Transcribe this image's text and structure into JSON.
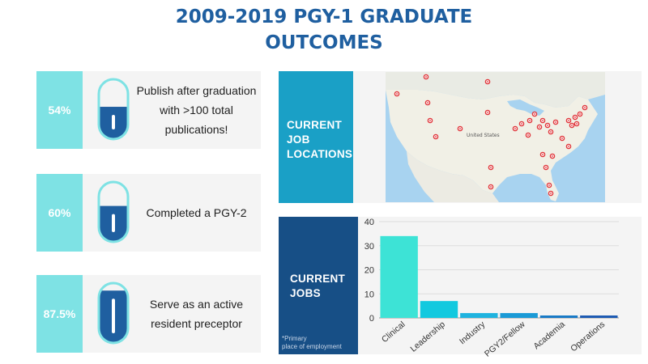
{
  "title": {
    "line1": "2009-2019 PGY-1 GRADUATE",
    "line2": "OUTCOMES"
  },
  "colors": {
    "title": "#1f5fa0",
    "percent_box": "#7ee2e4",
    "pill_fill": "#1f5fa0",
    "pill_outline": "#7ee2e4",
    "locations_header": "#1aa0c6",
    "jobs_header": "#174f86"
  },
  "stats": [
    {
      "percent": "54%",
      "lines": [
        "Publish after graduation",
        "with >100 total",
        "publications!"
      ],
      "fill_fraction": 0.54
    },
    {
      "percent": "60%",
      "lines": [
        "Completed a PGY-2"
      ],
      "fill_fraction": 0.6
    },
    {
      "percent": "87.5%",
      "lines": [
        "Serve as an active",
        "resident preceptor"
      ],
      "fill_fraction": 0.875
    }
  ],
  "locations": {
    "header": [
      "CURRENT",
      "JOB",
      "LOCATIONS"
    ],
    "map_label": "United States",
    "marker_icon": "map-pin-icon"
  },
  "jobs": {
    "header": [
      "CURRENT",
      "JOBS"
    ],
    "footnote": [
      "*Primary",
      "place of employment"
    ]
  },
  "chart_data": {
    "type": "bar",
    "categories": [
      "Clinical",
      "Leadership",
      "Industry",
      "PGY2/Fellow",
      "Academia",
      "Operations"
    ],
    "values": [
      34,
      7,
      2,
      2,
      1,
      1
    ],
    "colors": [
      "#3de3d6",
      "#12c9df",
      "#1fb3df",
      "#1a9ad6",
      "#1779c6",
      "#1c5ab2"
    ],
    "ylim": [
      0,
      40
    ],
    "yticks": [
      0,
      10,
      20,
      30,
      40
    ],
    "grid": true,
    "legend": "none",
    "title": "",
    "xlabel": "",
    "ylabel": ""
  }
}
